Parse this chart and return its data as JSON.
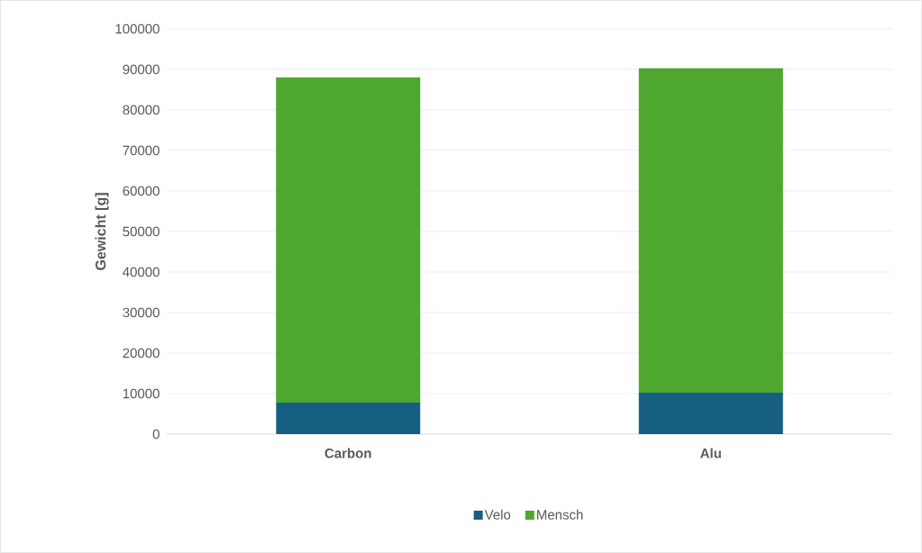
{
  "chart_data": {
    "type": "bar",
    "stacked": true,
    "ylabel": "Gewicht [g]",
    "categories": [
      "Carbon",
      "Alu"
    ],
    "series": [
      {
        "name": "Velo",
        "color": "#156082",
        "values": [
          7800,
          10200
        ]
      },
      {
        "name": "Mensch",
        "color": "#4ea72e",
        "values": [
          80200,
          80100
        ]
      }
    ],
    "ylim": [
      0,
      100000
    ],
    "yticks": [
      0,
      10000,
      20000,
      30000,
      40000,
      50000,
      60000,
      70000,
      80000,
      90000,
      100000
    ],
    "grid": "y",
    "legend": "bottom"
  }
}
